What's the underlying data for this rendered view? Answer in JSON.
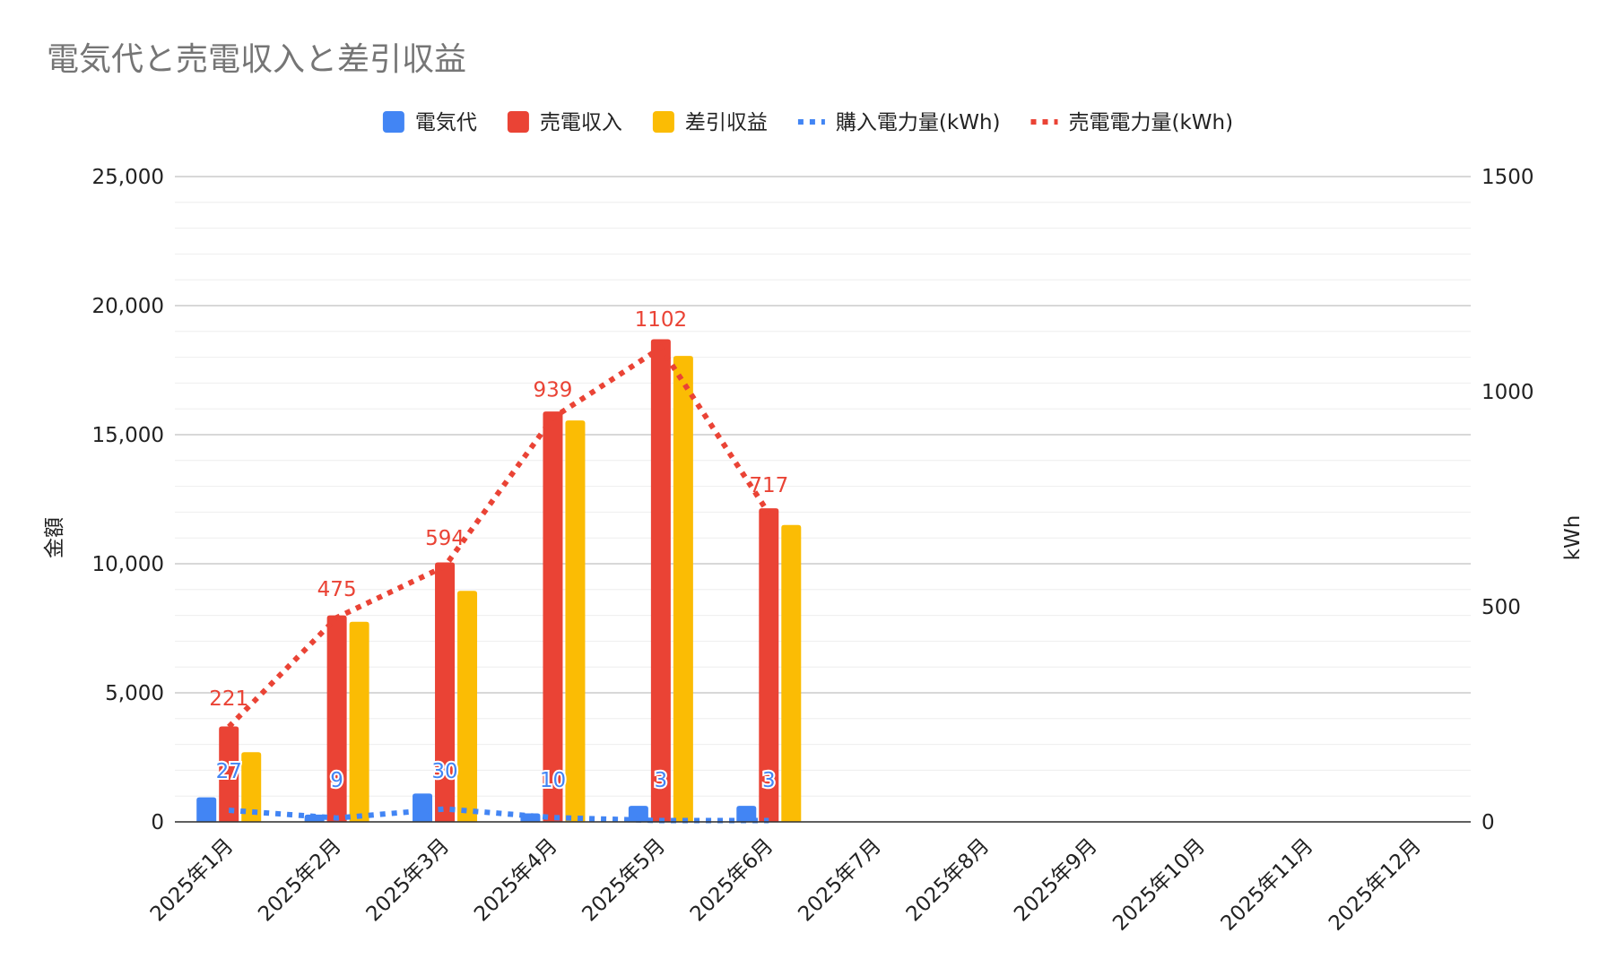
{
  "chart_data": {
    "type": "bar",
    "title": "電気代と売電収入と差引収益",
    "categories": [
      "2025年1月",
      "2025年2月",
      "2025年3月",
      "2025年4月",
      "2025年5月",
      "2025年6月",
      "2025年7月",
      "2025年8月",
      "2025年9月",
      "2025年10月",
      "2025年11月",
      "2025年12月"
    ],
    "series": [
      {
        "name": "電気代",
        "kind": "bar",
        "axis": "left",
        "color": "#4285f4",
        "values": [
          950,
          280,
          1100,
          330,
          620,
          620,
          null,
          null,
          null,
          null,
          null,
          null
        ]
      },
      {
        "name": "売電収入",
        "kind": "bar",
        "axis": "left",
        "color": "#ea4335",
        "values": [
          3700,
          8000,
          10050,
          15900,
          18700,
          12150,
          null,
          null,
          null,
          null,
          null,
          null
        ]
      },
      {
        "name": "差引収益",
        "kind": "bar",
        "axis": "left",
        "color": "#fbbc04",
        "values": [
          2700,
          7750,
          8950,
          15550,
          18050,
          11500,
          null,
          null,
          null,
          null,
          null,
          null
        ]
      },
      {
        "name": "購入電力量(kWh)",
        "kind": "line",
        "axis": "right",
        "style": "dotted",
        "color": "#4285f4",
        "values": [
          27,
          9,
          30,
          10,
          3,
          3,
          null,
          null,
          null,
          null,
          null,
          null
        ],
        "labels": [
          "27",
          "9",
          "30",
          "10",
          "3",
          "3"
        ]
      },
      {
        "name": "売電電力量(kWh)",
        "kind": "line",
        "axis": "right",
        "style": "dotted",
        "color": "#ea4335",
        "values": [
          221,
          475,
          594,
          939,
          1102,
          717,
          null,
          null,
          null,
          null,
          null,
          null
        ],
        "labels": [
          "221",
          "475",
          "594",
          "939",
          "1102",
          "717"
        ]
      }
    ],
    "ylabel": "金額",
    "y2label": "kWh",
    "ylim": [
      0,
      25000
    ],
    "y2lim": [
      0,
      1500
    ],
    "yticks": [
      "0",
      "5,000",
      "10,000",
      "15,000",
      "20,000",
      "25,000"
    ],
    "y2ticks": [
      "0",
      "500",
      "1000",
      "1500"
    ],
    "grid": true,
    "legend_position": "top"
  }
}
